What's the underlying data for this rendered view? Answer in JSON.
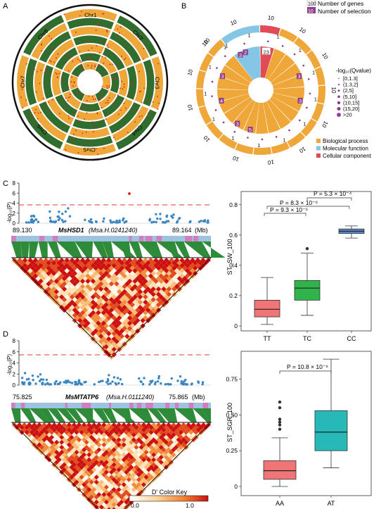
{
  "panels": {
    "a": {
      "letter": "A",
      "chromosomes": [
        "Chr1",
        "Chr2",
        "Chr3",
        "Chr4",
        "Chr5",
        "Chr6",
        "Chr7",
        "Chr8"
      ]
    },
    "b": {
      "letter": "B",
      "legend_genes": "Number of genes",
      "legend_genes_key": "100",
      "legend_selection": "Number of selection",
      "legend_selection_key": "10",
      "qvalue_title": "-log₁₀(Qvalue)",
      "qvalue_bins": [
        "[0,1.3]",
        "(1.3,2]",
        "(2,5]",
        "(5,10]",
        "(10,15]",
        "(15,20]",
        ">20"
      ],
      "categories": [
        {
          "label": "Biological process",
          "color": "#f0a73a"
        },
        {
          "label": "Molecular function",
          "color": "#85c6e6"
        },
        {
          "label": "Cellular component",
          "color": "#e04b55"
        }
      ],
      "inner_labels": [
        "23",
        "2",
        "3",
        "3",
        "5",
        "3",
        "4",
        "3",
        "3"
      ],
      "outer_tick": "10",
      "outer_tick_small": "1"
    },
    "c": {
      "letter": "C",
      "ylabel": "-log₁₀(P)",
      "yticks": [
        "0",
        "2",
        "4",
        "6",
        "8"
      ],
      "x_start": "89.130",
      "x_end": "89.164",
      "x_unit": "(Mb)",
      "gene": "MsHSD1",
      "gene_id": "(Msa.H.0241240)",
      "box": {
        "ylabel": "ST_SW_100",
        "yticks": [
          "0",
          "0.2",
          "0.4",
          "0.6",
          "0.8"
        ],
        "groups": [
          "TT",
          "TC",
          "CC"
        ],
        "pvals": [
          "P = 9.3 × 10⁻⁶",
          "P = 8.3 × 10⁻⁶",
          "P = 5.3 × 10⁻⁴"
        ]
      }
    },
    "d": {
      "letter": "D",
      "ylabel": "-log₁₀(P)",
      "yticks": [
        "0",
        "2",
        "4",
        "6",
        "8"
      ],
      "x_start": "75.825",
      "x_end": "75.865",
      "x_unit": "(Mb)",
      "gene": "MsMTATP6",
      "gene_id": "(Msa.H.0111240)",
      "box": {
        "ylabel": "ST_SGR_100",
        "yticks": [
          "0",
          "0.25",
          "0.50",
          "0.75"
        ],
        "groups": [
          "AA",
          "AT"
        ],
        "pvals": [
          "P = 10.8 × 10⁻⁶"
        ]
      }
    },
    "color_key": {
      "title": "D' Color Key",
      "min": "0.0",
      "max": "1.0"
    }
  },
  "chart_data": [
    {
      "type": "box",
      "panel": "C",
      "ylabel": "ST_SW_100",
      "ylim": [
        0,
        0.85
      ],
      "categories": [
        "TT",
        "TC",
        "CC"
      ],
      "boxes": [
        {
          "name": "TT",
          "min": 0.01,
          "q1": 0.06,
          "median": 0.11,
          "q3": 0.17,
          "max": 0.32,
          "color": "#ef7577"
        },
        {
          "name": "TC",
          "min": 0.07,
          "q1": 0.17,
          "median": 0.25,
          "q3": 0.3,
          "max": 0.48,
          "outliers": [
            0.51
          ],
          "color": "#2fb34a"
        },
        {
          "name": "CC",
          "min": 0.58,
          "q1": 0.61,
          "median": 0.625,
          "q3": 0.64,
          "max": 0.66,
          "color": "#5d86c7"
        }
      ]
    },
    {
      "type": "box",
      "panel": "D",
      "ylabel": "ST_SGR_100",
      "ylim": [
        0,
        0.92
      ],
      "categories": [
        "AA",
        "AT"
      ],
      "boxes": [
        {
          "name": "AA",
          "min": 0.0,
          "q1": 0.05,
          "median": 0.11,
          "q3": 0.18,
          "max": 0.34,
          "outliers": [
            0.4,
            0.43,
            0.45,
            0.47,
            0.55,
            0.59
          ],
          "color": "#ef7577"
        },
        {
          "name": "AT",
          "min": 0.13,
          "q1": 0.25,
          "median": 0.38,
          "q3": 0.53,
          "max": 0.89,
          "color": "#27b8b8"
        }
      ]
    }
  ]
}
